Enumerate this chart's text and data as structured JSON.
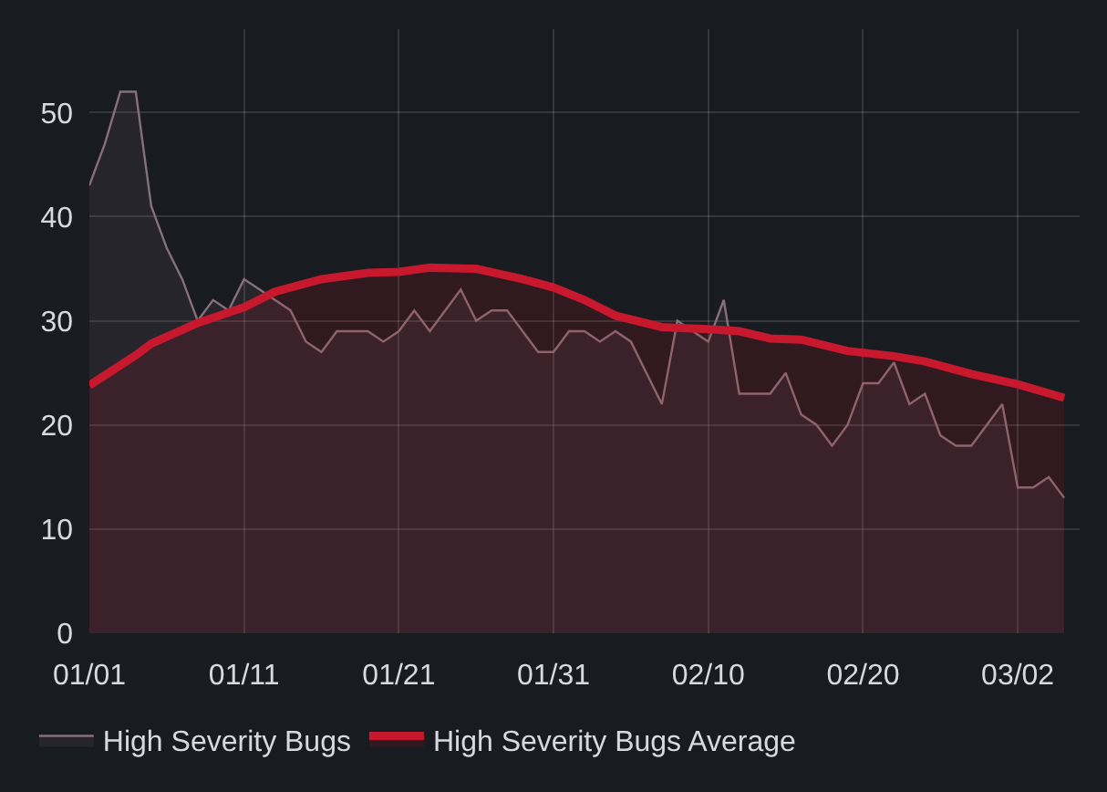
{
  "chart_data": {
    "type": "area",
    "x": [
      "--01-01",
      "--01-02",
      "--01-03",
      "--01-04",
      "--01-05",
      "--01-06",
      "--01-07",
      "--01-08",
      "--01-09",
      "--01-10",
      "--01-11",
      "--01-12",
      "--01-13",
      "--01-14",
      "--01-15",
      "--01-16",
      "--01-17",
      "--01-18",
      "--01-19",
      "--01-20",
      "--01-21",
      "--01-22",
      "--01-23",
      "--01-24",
      "--01-25",
      "--01-26",
      "--01-27",
      "--01-28",
      "--01-29",
      "--01-30",
      "--01-31",
      "--02-01",
      "--02-02",
      "--02-03",
      "--02-04",
      "--02-05",
      "--02-06",
      "--02-07",
      "--02-08",
      "--02-09",
      "--02-10",
      "--02-11",
      "--02-12",
      "--02-13",
      "--02-14",
      "--02-15",
      "--02-16",
      "--02-17",
      "--02-18",
      "--02-19",
      "--02-20",
      "--02-21",
      "--02-22",
      "--02-23",
      "--02-24",
      "--02-25",
      "--02-26",
      "--02-27",
      "--02-28",
      "--03-01",
      "--03-02",
      "--03-03",
      "--03-04",
      "--03-05"
    ],
    "series": [
      {
        "name": "High Severity Bugs",
        "color": "#86707a",
        "values": [
          43,
          47,
          52,
          52,
          41,
          37,
          34,
          30,
          32,
          31,
          34,
          33,
          32,
          31,
          28,
          27,
          29,
          29,
          29,
          28,
          29,
          31,
          29,
          31,
          33,
          30,
          31,
          31,
          29,
          27,
          27,
          29,
          29,
          28,
          29,
          28,
          25,
          22,
          30,
          29,
          28,
          32,
          23,
          23,
          23,
          25,
          21,
          20,
          18,
          20,
          24,
          24,
          26,
          22,
          23,
          19,
          18,
          18,
          20,
          22,
          14,
          14,
          15,
          13
        ]
      },
      {
        "name": "High Severity Bugs Average",
        "color": "#c8182e",
        "x": [
          "--01-01",
          "--01-04",
          "--01-05",
          "--01-08",
          "--01-11",
          "--01-13",
          "--01-16",
          "--01-19",
          "--01-21",
          "--01-23",
          "--01-26",
          "--01-29",
          "--01-31",
          "--02-02",
          "--02-04",
          "--02-07",
          "--02-10",
          "--02-12",
          "--02-14",
          "--02-16",
          "--02-19",
          "--02-22",
          "--02-24",
          "--02-27",
          "--03-02",
          "--03-05"
        ],
        "values": [
          23.8,
          26.7,
          27.8,
          29.8,
          31.3,
          32.8,
          34.0,
          34.6,
          34.7,
          35.1,
          35.0,
          34.0,
          33.2,
          32.0,
          30.5,
          29.4,
          29.2,
          29.0,
          28.3,
          28.2,
          27.1,
          26.6,
          26.1,
          24.9,
          23.9,
          22.6
        ]
      }
    ],
    "xlim": [
      "--01-01",
      "--03-06"
    ],
    "xticks": [
      {
        "value": "--01-01",
        "label": "01/01"
      },
      {
        "value": "--01-11",
        "label": "01/11"
      },
      {
        "value": "--01-21",
        "label": "01/21"
      },
      {
        "value": "--01-31",
        "label": "01/31"
      },
      {
        "value": "--02-10",
        "label": "02/10"
      },
      {
        "value": "--02-20",
        "label": "02/20"
      },
      {
        "value": "--03-02",
        "label": "03/02"
      }
    ],
    "ylim": [
      0,
      58
    ],
    "yticks": [
      0,
      10,
      20,
      30,
      40,
      50
    ],
    "grid": true,
    "legend": "bottom left"
  }
}
